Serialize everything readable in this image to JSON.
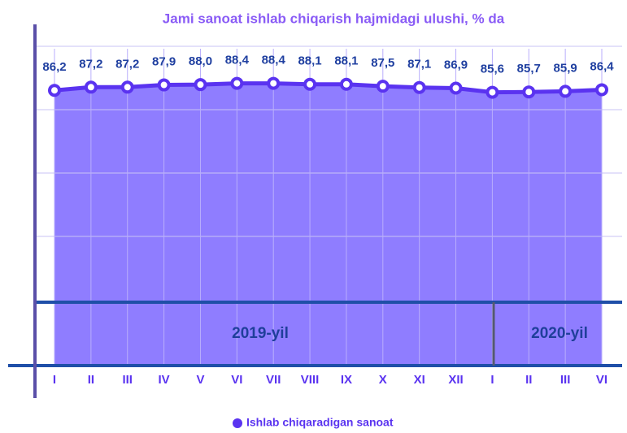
{
  "chart_data": {
    "type": "area",
    "title": "Jami sanoat ishlab chiqarish hajmidagi ulushi, % da",
    "categories": [
      "I",
      "II",
      "III",
      "IV",
      "V",
      "VI",
      "VII",
      "VIII",
      "IX",
      "X",
      "XI",
      "XII",
      "I",
      "II",
      "III",
      "VI"
    ],
    "series": [
      {
        "name": "Ishlab chiqaradigan sanoat",
        "color": "#5a33f0",
        "values": [
          86.2,
          87.2,
          87.2,
          87.9,
          88.0,
          88.4,
          88.4,
          88.1,
          88.1,
          87.5,
          87.1,
          86.9,
          85.6,
          85.7,
          85.9,
          86.4
        ],
        "value_labels": [
          "86,2",
          "87,2",
          "87,2",
          "87,9",
          "88,0",
          "88,4",
          "88,4",
          "88,1",
          "88,1",
          "87,5",
          "87,1",
          "86,9",
          "85,6",
          "85,7",
          "85,9",
          "86,4"
        ]
      }
    ],
    "area_color": "#8f7dff",
    "year_labels": [
      "2019-yil",
      "2020-yil"
    ],
    "ylim": [
      0,
      100
    ]
  }
}
